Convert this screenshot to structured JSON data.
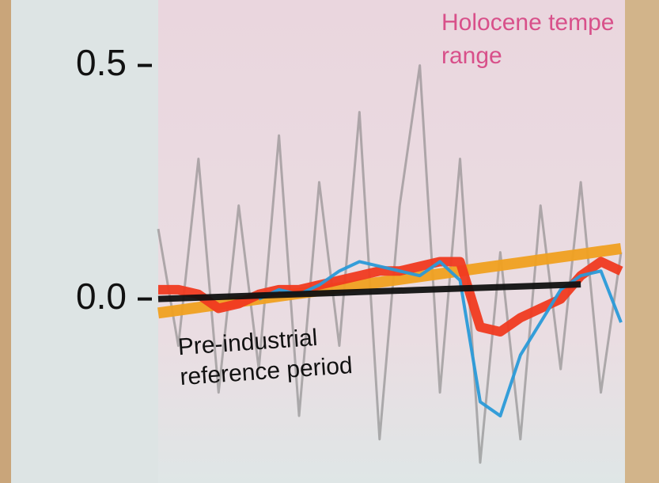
{
  "chart_data": {
    "type": "line",
    "annotations": {
      "holocene": [
        "Holocene tempe",
        "range"
      ],
      "reference": [
        "Pre-industrial",
        "reference period"
      ]
    },
    "categories": [
      null,
      null,
      null,
      null,
      null,
      null,
      null,
      null,
      null,
      null,
      null,
      null,
      null,
      null,
      null,
      null,
      null,
      null,
      null,
      null,
      null,
      null,
      null,
      null
    ],
    "ylim": [
      -0.37,
      0.64
    ],
    "yticks": [
      {
        "value": 0,
        "label": "0.0"
      },
      0.5
    ],
    "series": [
      {
        "color": "#7a7a7a",
        "width": 3,
        "values": [
          0.15,
          -0.1,
          0.3,
          -0.2,
          0.2,
          -0.15,
          0.35,
          -0.25,
          0.25,
          -0.1,
          0.4,
          -0.3,
          0.2,
          0.5,
          -0.2,
          0.3,
          -0.35,
          0.1,
          -0.3,
          0.2,
          -0.15,
          0.25,
          -0.2,
          0.1
        ]
      },
      {
        "color": "#f0a020",
        "width": 14,
        "values": [
          -0.03,
          -0.024,
          -0.018,
          -0.012,
          -0.006,
          0.0,
          0.006,
          0.012,
          0.018,
          0.024,
          0.03,
          0.036,
          0.042,
          0.048,
          0.054,
          0.06,
          0.066,
          0.072,
          0.078,
          0.084,
          0.09,
          0.096,
          0.102,
          0.108
        ]
      },
      {
        "color": "#f03a20",
        "width": 12,
        "values": [
          0.02,
          0.02,
          0.01,
          -0.02,
          -0.01,
          0.01,
          0.02,
          0.02,
          0.03,
          0.04,
          0.05,
          0.06,
          0.06,
          0.07,
          0.08,
          0.08,
          -0.06,
          -0.07,
          -0.04,
          -0.02,
          0.0,
          0.05,
          0.08,
          0.06
        ]
      },
      {
        "color": "#2a9ad8",
        "width": 4,
        "values": [
          null,
          null,
          null,
          null,
          null,
          0.0,
          0.02,
          0.01,
          0.03,
          0.06,
          0.08,
          0.07,
          0.06,
          0.05,
          0.08,
          0.04,
          -0.22,
          -0.25,
          -0.12,
          -0.05,
          0.02,
          0.05,
          0.06,
          -0.05
        ]
      },
      {
        "color": "#111111",
        "width": 8,
        "values": [
          0.0,
          0.0015,
          0.003,
          0.0045,
          0.006,
          0.0075,
          0.009,
          0.0105,
          0.012,
          0.0135,
          0.015,
          0.0165,
          0.018,
          0.0195,
          0.021,
          0.0225,
          0.024,
          0.0255,
          0.027,
          0.0285,
          0.03,
          0.0315,
          null,
          null
        ]
      }
    ]
  }
}
